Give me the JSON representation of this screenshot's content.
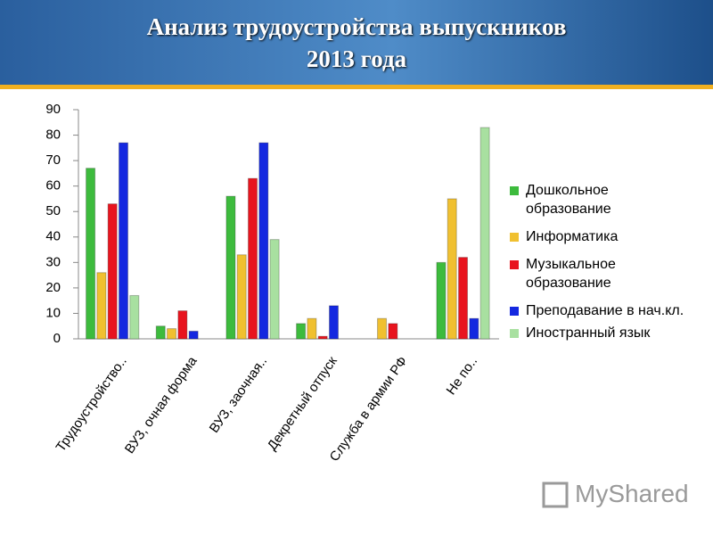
{
  "chart_data": {
    "type": "bar",
    "title": "Анализ трудоустройства выпускников 2013 года",
    "categories": [
      "Трудоустройство..",
      "ВУЗ, очная форма",
      "ВУЗ, заочная..",
      "Декретный отпуск",
      "Служба в армии РФ",
      "Не по.."
    ],
    "series": [
      {
        "name": "Дошкольное образование",
        "color": "#3dbb3d",
        "values": [
          67,
          5,
          56,
          6,
          0,
          30
        ]
      },
      {
        "name": "Информатика",
        "color": "#f0c030",
        "values": [
          26,
          4,
          33,
          8,
          8,
          55
        ]
      },
      {
        "name": "Музыкальное образование",
        "color": "#e8141e",
        "values": [
          53,
          11,
          63,
          1,
          6,
          32
        ]
      },
      {
        "name": "Преподавание в нач.кл.",
        "color": "#1428e0",
        "values": [
          77,
          3,
          77,
          13,
          0,
          8
        ]
      },
      {
        "name": "Иностранный язык",
        "color": "#a8e0a0",
        "values": [
          17,
          0,
          39,
          0,
          0,
          83
        ]
      }
    ],
    "ylim": [
      0,
      90
    ],
    "yticks": [
      0,
      10,
      20,
      30,
      40,
      50,
      60,
      70,
      80,
      90
    ],
    "grid": false,
    "legend": "right"
  },
  "watermark": "MyShared"
}
